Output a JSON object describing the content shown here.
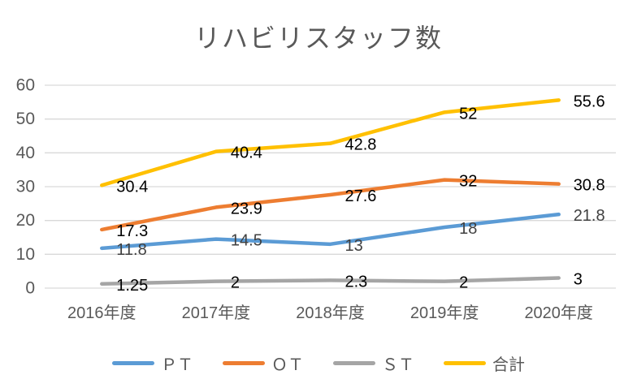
{
  "chart_data": {
    "type": "line",
    "title": "リハビリスタッフ数",
    "categories": [
      "2016年度",
      "2017年度",
      "2018年度",
      "2019年度",
      "2020年度"
    ],
    "series": [
      {
        "key": "pt",
        "name": "ＰＴ",
        "color": "#5B9BD5",
        "label_color": "#404040",
        "values": [
          11.8,
          14.5,
          13,
          18,
          21.8
        ]
      },
      {
        "key": "ot",
        "name": "ＯＴ",
        "color": "#ED7D31",
        "label_color": "#000000",
        "values": [
          17.3,
          23.9,
          27.6,
          32,
          30.8
        ]
      },
      {
        "key": "st",
        "name": "ＳＴ",
        "color": "#A5A5A5",
        "label_color": "#000000",
        "values": [
          1.25,
          2,
          2.3,
          2,
          3
        ]
      },
      {
        "key": "total",
        "name": "合計",
        "color": "#FFC000",
        "label_color": "#000000",
        "values": [
          30.4,
          40.4,
          42.8,
          52,
          55.6
        ]
      }
    ],
    "y_axis": {
      "min": 0,
      "max": 60,
      "step": 10,
      "tick_labels": [
        "0",
        "10",
        "20",
        "30",
        "40",
        "50",
        "60"
      ]
    },
    "grid": true,
    "legend_position": "bottom",
    "styles": {
      "grid_color": "#D9D9D9",
      "axis_text_color": "#595959",
      "title_color": "#595959",
      "legend_text_color": "#595959",
      "background": "#FFFFFF"
    }
  }
}
